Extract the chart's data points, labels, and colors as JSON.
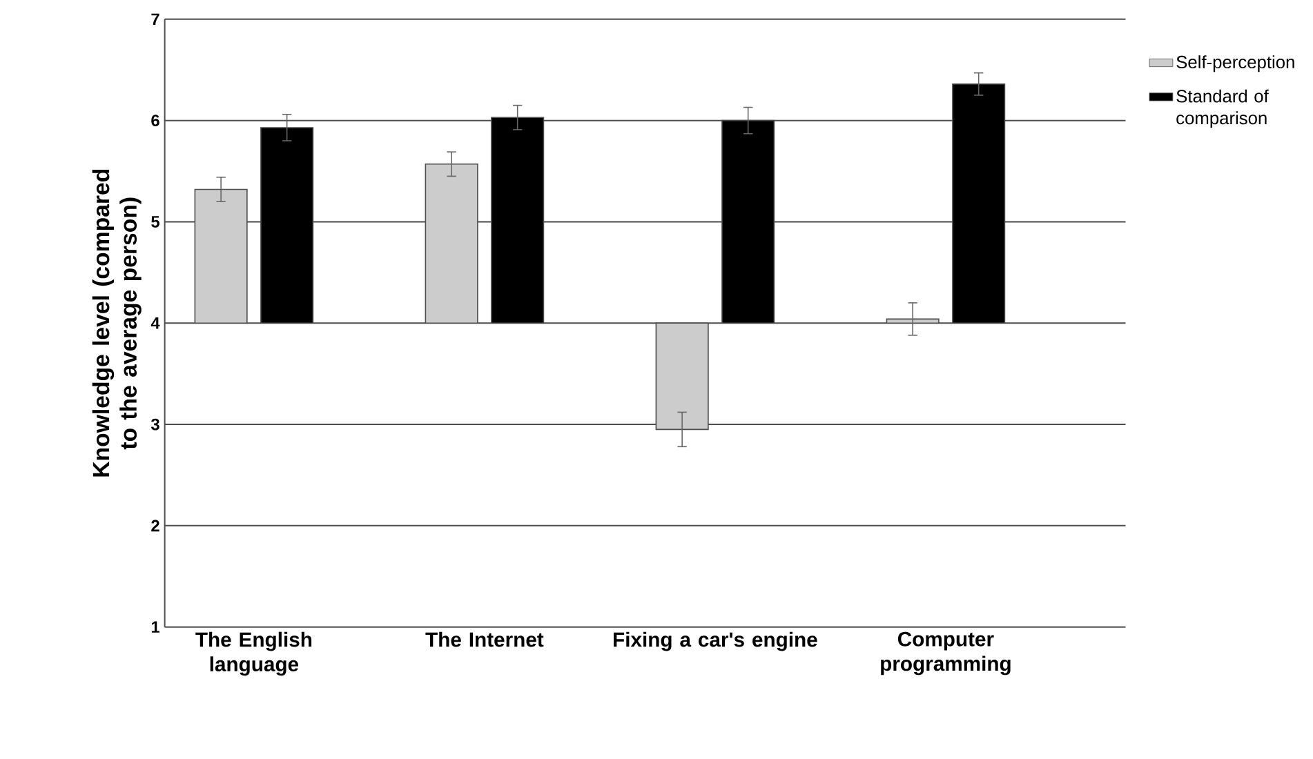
{
  "chart_data": {
    "type": "bar",
    "ylabel": "Knowledge level (compared to the average person)",
    "categories": [
      "The English language",
      "The Internet",
      "Fixing a car's engine",
      "Computer programming"
    ],
    "series": [
      {
        "name": "Self-perception",
        "color": "#cccccc",
        "base": [
          4,
          4,
          4,
          4
        ],
        "values": [
          1.32,
          1.57,
          -1.05,
          0.04
        ],
        "errors": [
          0.12,
          0.12,
          0.17,
          0.16
        ]
      },
      {
        "name": "Standard of comparison",
        "color": "#000000",
        "base": [
          4,
          4,
          4,
          4
        ],
        "values": [
          1.93,
          2.03,
          2.0,
          2.36
        ],
        "errors": [
          0.13,
          0.12,
          0.13,
          0.11
        ]
      }
    ],
    "ylim": [
      1,
      7
    ],
    "yticks": [
      1,
      2,
      3,
      4,
      5,
      6,
      7
    ],
    "grid": "y",
    "legend": "right"
  }
}
